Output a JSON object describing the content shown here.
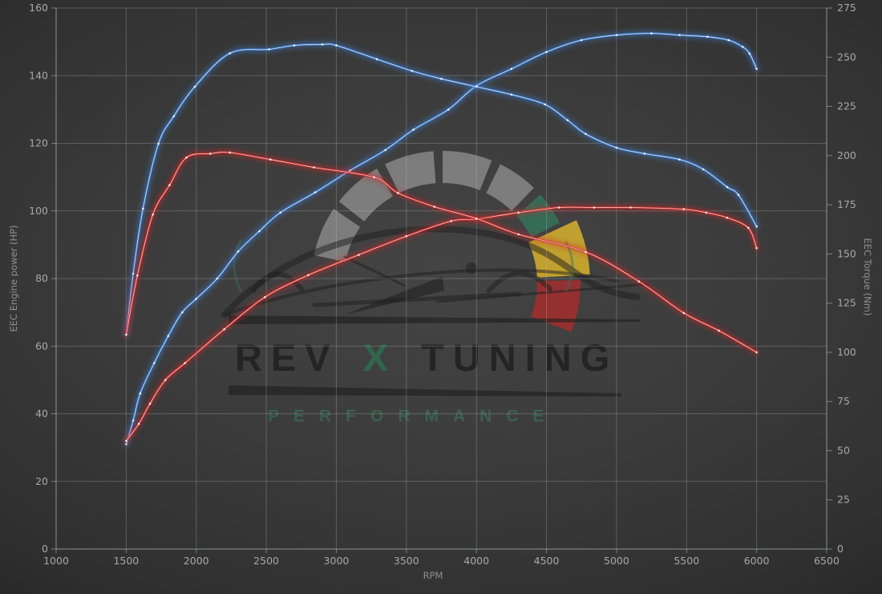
{
  "watermark": {
    "brand_left": "REV",
    "brand_x": "X",
    "brand_right": "TUNING",
    "subtitle": "PERFORMANCE"
  },
  "colors": {
    "tuned_line": "#3d7fd4",
    "stock_line": "#d32b2b",
    "grid": "#b8bcc0",
    "tick_text": "#a8a8a8",
    "axis_title_text": "#8f8f8f",
    "watermark_gray": "#8c8c8c",
    "watermark_green": "#34705a",
    "watermark_yellow": "#c7a52e",
    "watermark_red": "#9e2f2f",
    "watermark_dark": "#1e1e1e"
  },
  "chart_data": {
    "type": "line",
    "xlabel": "RPM",
    "ylabel_left": "EEC Engine power (HP)",
    "ylabel_right": "EEC Torque (Nm)",
    "xlim": [
      1000,
      6500
    ],
    "ylim_left": [
      0,
      160
    ],
    "ylim_right": [
      0,
      275
    ],
    "x_ticks": [
      1000,
      1500,
      2000,
      2500,
      3000,
      3500,
      4000,
      4500,
      5000,
      5500,
      6000,
      6500
    ],
    "y_left_ticks": [
      0,
      20,
      40,
      60,
      80,
      100,
      120,
      140,
      160
    ],
    "y_right_ticks": [
      0,
      25,
      50,
      75,
      100,
      125,
      150,
      175,
      200,
      225,
      250,
      275
    ],
    "grid": true,
    "legend": "none",
    "series": [
      {
        "name": "tuned-engine-power-hp",
        "axis": "left",
        "color": "#3d7fd4",
        "points": [
          [
            1500,
            31
          ],
          [
            1550,
            38
          ],
          [
            1600,
            46
          ],
          [
            1700,
            55
          ],
          [
            1800,
            63
          ],
          [
            1900,
            70
          ],
          [
            2000,
            74
          ],
          [
            2150,
            80
          ],
          [
            2300,
            88
          ],
          [
            2450,
            94
          ],
          [
            2600,
            99.5
          ],
          [
            2850,
            105.5
          ],
          [
            3100,
            112
          ],
          [
            3350,
            118
          ],
          [
            3550,
            124
          ],
          [
            3800,
            130
          ],
          [
            4000,
            137
          ],
          [
            4250,
            142
          ],
          [
            4500,
            147
          ],
          [
            4750,
            150.5
          ],
          [
            5000,
            152
          ],
          [
            5250,
            152.5
          ],
          [
            5450,
            152
          ],
          [
            5650,
            151.5
          ],
          [
            5800,
            150.5
          ],
          [
            5900,
            148.5
          ],
          [
            5950,
            146.5
          ],
          [
            6000,
            142
          ]
        ]
      },
      {
        "name": "tuned-torque-nm",
        "axis": "right",
        "color": "#3d7fd4",
        "points": [
          [
            1500,
            109
          ],
          [
            1550,
            140
          ],
          [
            1620,
            173
          ],
          [
            1730,
            206
          ],
          [
            1840,
            220
          ],
          [
            1990,
            235
          ],
          [
            2240,
            252
          ],
          [
            2520,
            254
          ],
          [
            2700,
            256
          ],
          [
            2900,
            256.5
          ],
          [
            3000,
            256
          ],
          [
            3290,
            249
          ],
          [
            3540,
            243
          ],
          [
            3750,
            239
          ],
          [
            4000,
            235
          ],
          [
            4250,
            231
          ],
          [
            4490,
            226
          ],
          [
            4650,
            218
          ],
          [
            4780,
            211
          ],
          [
            5000,
            204
          ],
          [
            5200,
            201
          ],
          [
            5450,
            198
          ],
          [
            5620,
            193
          ],
          [
            5790,
            184
          ],
          [
            5870,
            180
          ],
          [
            6000,
            164
          ]
        ]
      },
      {
        "name": "stock-engine-power-hp",
        "axis": "left",
        "color": "#d32b2b",
        "points": [
          [
            1500,
            32
          ],
          [
            1590,
            37
          ],
          [
            1670,
            43
          ],
          [
            1780,
            50
          ],
          [
            1920,
            55
          ],
          [
            2200,
            65
          ],
          [
            2490,
            74.5
          ],
          [
            2800,
            81
          ],
          [
            3160,
            87
          ],
          [
            3500,
            92.5
          ],
          [
            3820,
            97
          ],
          [
            4000,
            97.6
          ],
          [
            4300,
            99.5
          ],
          [
            4590,
            101
          ],
          [
            4840,
            101
          ],
          [
            5100,
            101
          ],
          [
            5480,
            100.5
          ],
          [
            5640,
            99.5
          ],
          [
            5790,
            98
          ],
          [
            5940,
            95
          ],
          [
            6000,
            89
          ]
        ]
      },
      {
        "name": "stock-torque-nm",
        "axis": "right",
        "color": "#d32b2b",
        "points": [
          [
            1500,
            109
          ],
          [
            1580,
            139
          ],
          [
            1690,
            170
          ],
          [
            1810,
            185
          ],
          [
            1930,
            199
          ],
          [
            2100,
            201
          ],
          [
            2240,
            201.5
          ],
          [
            2530,
            198
          ],
          [
            2840,
            194
          ],
          [
            3270,
            189
          ],
          [
            3440,
            181
          ],
          [
            3700,
            174
          ],
          [
            4000,
            168
          ],
          [
            4300,
            160
          ],
          [
            4780,
            151
          ],
          [
            5160,
            136
          ],
          [
            5480,
            120
          ],
          [
            5730,
            111
          ],
          [
            6000,
            100
          ]
        ]
      }
    ]
  }
}
